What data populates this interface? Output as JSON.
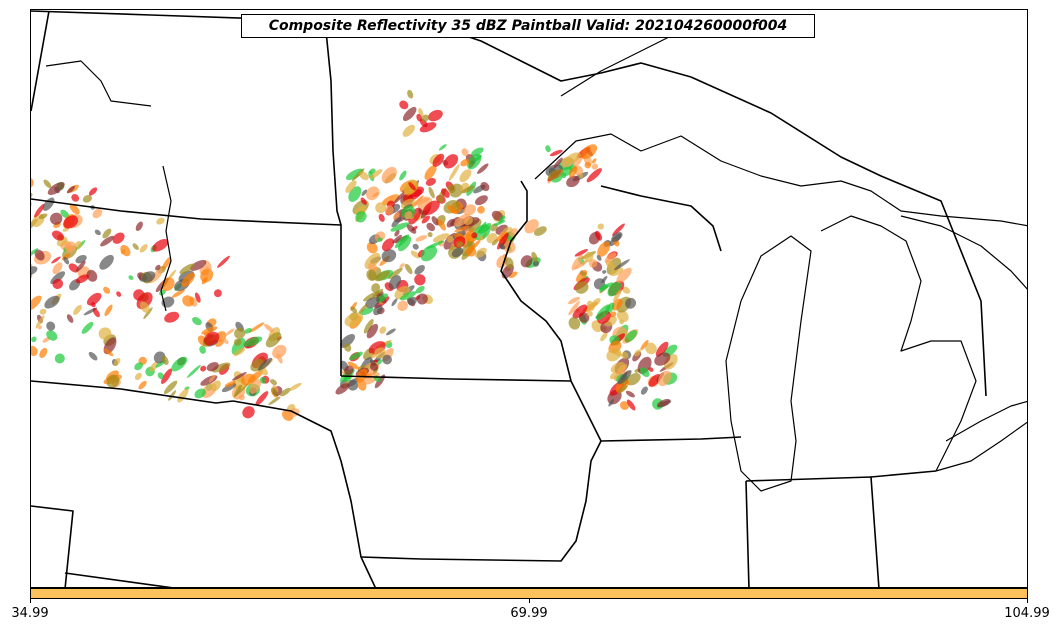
{
  "title": "Composite Reflectivity 35 dBZ Paintball Valid: 202104260000f004",
  "colorbar": {
    "color": "#fec25d",
    "ticks": [
      "34.99",
      "69.99",
      "104.99"
    ]
  },
  "member_colors": [
    "#e8000b",
    "#ff7c00",
    "#1ac938",
    "#8b2b2e",
    "#9f8c1c",
    "#555555",
    "#ff9f55",
    "#e0b040"
  ],
  "outline_color": "#000000"
}
